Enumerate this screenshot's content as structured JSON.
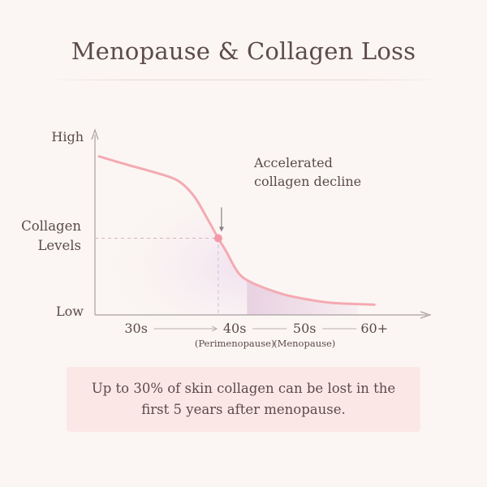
{
  "header": {
    "title": "Menopause & Collagen Loss"
  },
  "chart_data": {
    "type": "line",
    "title": "Menopause & Collagen Loss",
    "ylabel": "Collagen Levels",
    "y_tick_labels": [
      "High",
      "Low"
    ],
    "ylim": [
      0,
      100
    ],
    "xlim": [
      25,
      65
    ],
    "x_tick_labels": [
      {
        "label": "30s",
        "x": 30
      },
      {
        "label": "40s",
        "sublabel": "(Perimenopause)",
        "x": 42
      },
      {
        "label": "50s",
        "sublabel": "(Menopause)",
        "x": 50.5
      },
      {
        "label": "60+",
        "x": 59
      }
    ],
    "series": [
      {
        "color": "#f4aab2",
        "points": [
          {
            "x": 25.5,
            "y": 93
          },
          {
            "x": 29,
            "y": 88
          },
          {
            "x": 32,
            "y": 84
          },
          {
            "x": 35,
            "y": 79
          },
          {
            "x": 37,
            "y": 70
          },
          {
            "x": 38.5,
            "y": 58
          },
          {
            "x": 40,
            "y": 45
          },
          {
            "x": 41,
            "y": 37
          },
          {
            "x": 42,
            "y": 28
          },
          {
            "x": 43,
            "y": 22
          },
          {
            "x": 45,
            "y": 17
          },
          {
            "x": 48,
            "y": 12
          },
          {
            "x": 51,
            "y": 9
          },
          {
            "x": 54,
            "y": 7
          },
          {
            "x": 59,
            "y": 6
          }
        ]
      }
    ],
    "annotation": {
      "text_lines": [
        "Accelerated",
        "collagen decline"
      ],
      "x": 40,
      "y": 45,
      "marker_color": "#f29aa6"
    },
    "shaded_region": {
      "x_start": 43.5,
      "x_end": 57,
      "color": "#e7cfe0"
    },
    "grid": false,
    "legend": "none"
  },
  "callout": {
    "text": "Up to 30% of skin collagen can be lost in the first 5 years after menopause."
  }
}
